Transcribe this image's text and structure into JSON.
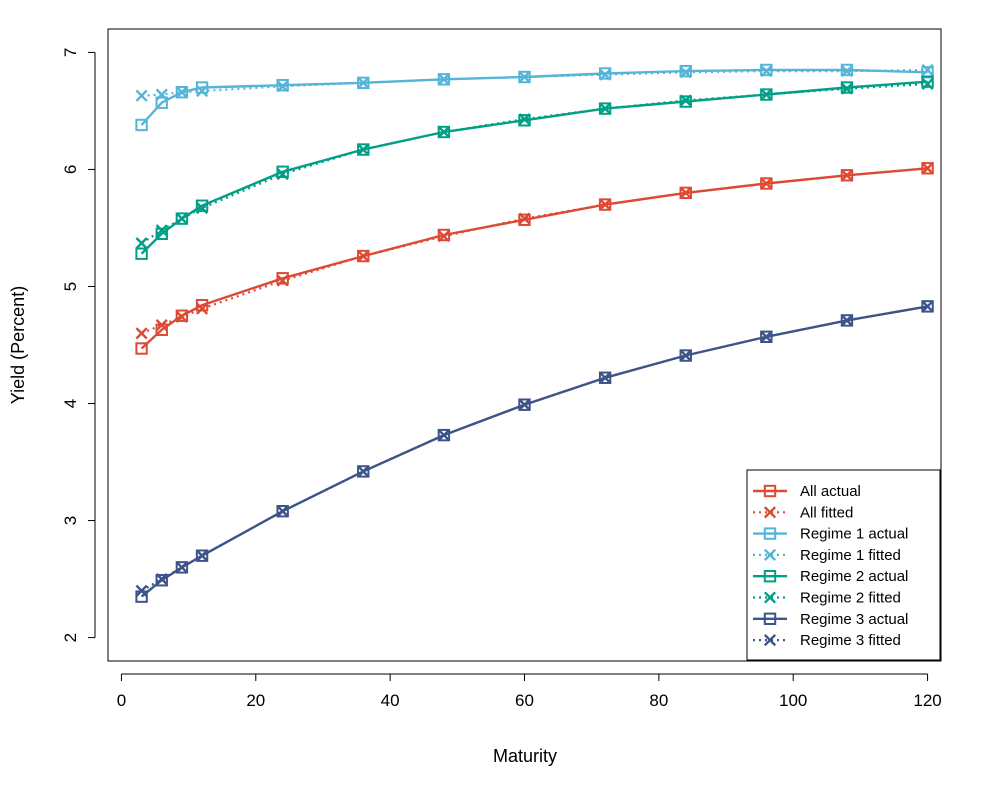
{
  "chart_data": {
    "type": "line",
    "title": "",
    "xlabel": "Maturity",
    "ylabel": "Yield (Percent)",
    "xlim": [
      -2,
      122
    ],
    "ylim": [
      1.8,
      7.2
    ],
    "xticks": [
      0,
      20,
      40,
      60,
      80,
      100,
      120
    ],
    "yticks": [
      2,
      3,
      4,
      5,
      6,
      7
    ],
    "legend_position": "bottom-right",
    "x": [
      3,
      6,
      9,
      12,
      24,
      36,
      48,
      60,
      72,
      84,
      96,
      108,
      120
    ],
    "series": [
      {
        "name": "All actual",
        "color": "#DC4A35",
        "style": "solid",
        "marker": "square",
        "values": [
          4.47,
          4.63,
          4.75,
          4.84,
          5.07,
          5.26,
          5.44,
          5.57,
          5.7,
          5.8,
          5.88,
          5.95,
          6.01
        ]
      },
      {
        "name": "All fitted",
        "color": "#DC4A35",
        "style": "dotted",
        "marker": "x",
        "values": [
          4.6,
          4.67,
          4.74,
          4.81,
          5.05,
          5.26,
          5.43,
          5.58,
          5.7,
          5.8,
          5.88,
          5.95,
          6.01
        ]
      },
      {
        "name": "Regime 1 actual",
        "color": "#56B4D8",
        "style": "solid",
        "marker": "square",
        "values": [
          6.38,
          6.57,
          6.66,
          6.7,
          6.72,
          6.74,
          6.77,
          6.79,
          6.82,
          6.84,
          6.85,
          6.85,
          6.83
        ]
      },
      {
        "name": "Regime 1 fitted",
        "color": "#56B4D8",
        "style": "dotted",
        "marker": "x",
        "values": [
          6.63,
          6.64,
          6.66,
          6.67,
          6.71,
          6.74,
          6.77,
          6.79,
          6.81,
          6.83,
          6.84,
          6.84,
          6.85
        ]
      },
      {
        "name": "Regime 2 actual",
        "color": "#009F86",
        "style": "solid",
        "marker": "square",
        "values": [
          5.28,
          5.45,
          5.58,
          5.69,
          5.98,
          6.17,
          6.32,
          6.42,
          6.52,
          6.58,
          6.64,
          6.7,
          6.75
        ]
      },
      {
        "name": "Regime 2 fitted",
        "color": "#009F86",
        "style": "dotted",
        "marker": "x",
        "values": [
          5.37,
          5.48,
          5.58,
          5.67,
          5.96,
          6.17,
          6.32,
          6.43,
          6.52,
          6.59,
          6.64,
          6.69,
          6.73
        ]
      },
      {
        "name": "Regime 3 actual",
        "color": "#3C5488",
        "style": "solid",
        "marker": "square",
        "values": [
          2.35,
          2.49,
          2.6,
          2.7,
          3.08,
          3.42,
          3.73,
          3.99,
          4.22,
          4.41,
          4.57,
          4.71,
          4.83
        ]
      },
      {
        "name": "Regime 3 fitted",
        "color": "#3C5488",
        "style": "dotted",
        "marker": "x",
        "values": [
          2.4,
          2.5,
          2.6,
          2.7,
          3.08,
          3.42,
          3.73,
          3.99,
          4.22,
          4.41,
          4.57,
          4.71,
          4.83
        ]
      }
    ]
  }
}
